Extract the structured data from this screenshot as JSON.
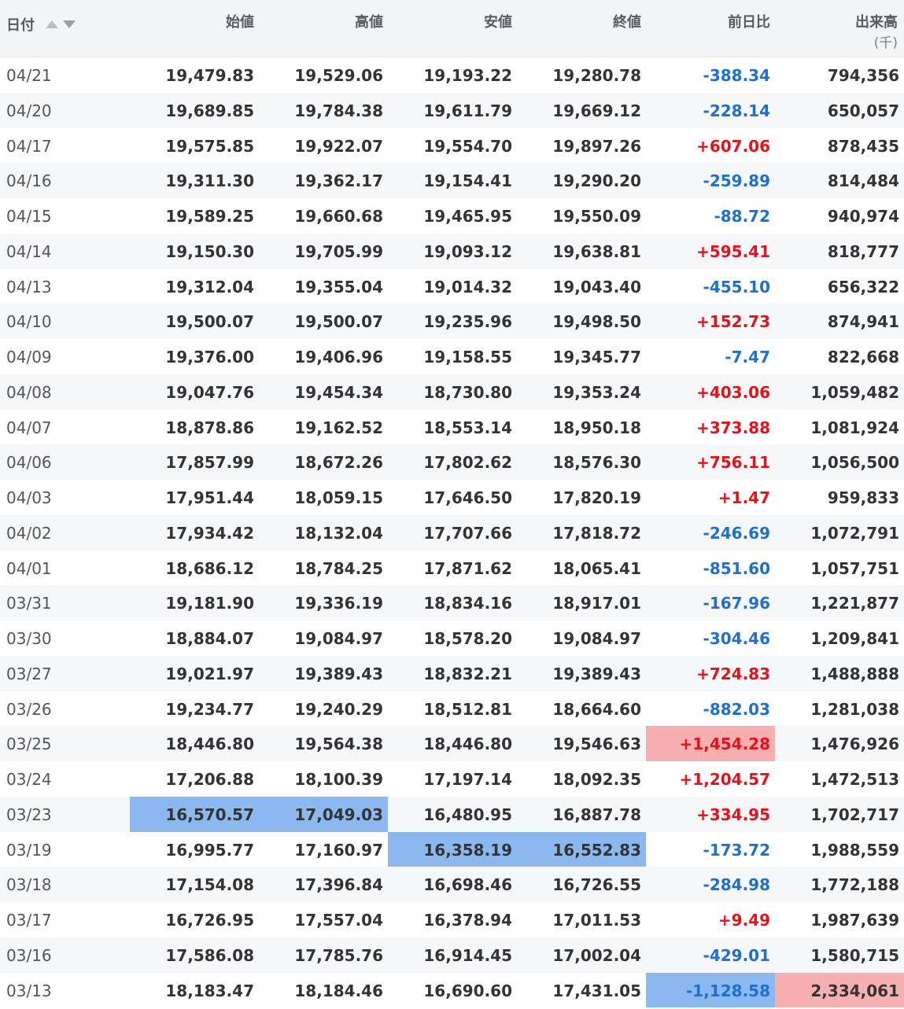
{
  "header": {
    "date": "日付",
    "open": "始値",
    "high": "高値",
    "low": "安値",
    "close": "終値",
    "change": "前日比",
    "volume": "出来高",
    "volume_unit": "(千)"
  },
  "rows": [
    {
      "date": "04/21",
      "open": "19,479.83",
      "high": "19,529.06",
      "low": "19,193.22",
      "close": "19,280.78",
      "change": "-388.34",
      "volume": "794,356"
    },
    {
      "date": "04/20",
      "open": "19,689.85",
      "high": "19,784.38",
      "low": "19,611.79",
      "close": "19,669.12",
      "change": "-228.14",
      "volume": "650,057"
    },
    {
      "date": "04/17",
      "open": "19,575.85",
      "high": "19,922.07",
      "low": "19,554.70",
      "close": "19,897.26",
      "change": "+607.06",
      "volume": "878,435"
    },
    {
      "date": "04/16",
      "open": "19,311.30",
      "high": "19,362.17",
      "low": "19,154.41",
      "close": "19,290.20",
      "change": "-259.89",
      "volume": "814,484"
    },
    {
      "date": "04/15",
      "open": "19,589.25",
      "high": "19,660.68",
      "low": "19,465.95",
      "close": "19,550.09",
      "change": "-88.72",
      "volume": "940,974"
    },
    {
      "date": "04/14",
      "open": "19,150.30",
      "high": "19,705.99",
      "low": "19,093.12",
      "close": "19,638.81",
      "change": "+595.41",
      "volume": "818,777"
    },
    {
      "date": "04/13",
      "open": "19,312.04",
      "high": "19,355.04",
      "low": "19,014.32",
      "close": "19,043.40",
      "change": "-455.10",
      "volume": "656,322"
    },
    {
      "date": "04/10",
      "open": "19,500.07",
      "high": "19,500.07",
      "low": "19,235.96",
      "close": "19,498.50",
      "change": "+152.73",
      "volume": "874,941"
    },
    {
      "date": "04/09",
      "open": "19,376.00",
      "high": "19,406.96",
      "low": "19,158.55",
      "close": "19,345.77",
      "change": "-7.47",
      "volume": "822,668"
    },
    {
      "date": "04/08",
      "open": "19,047.76",
      "high": "19,454.34",
      "low": "18,730.80",
      "close": "19,353.24",
      "change": "+403.06",
      "volume": "1,059,482"
    },
    {
      "date": "04/07",
      "open": "18,878.86",
      "high": "19,162.52",
      "low": "18,553.14",
      "close": "18,950.18",
      "change": "+373.88",
      "volume": "1,081,924"
    },
    {
      "date": "04/06",
      "open": "17,857.99",
      "high": "18,672.26",
      "low": "17,802.62",
      "close": "18,576.30",
      "change": "+756.11",
      "volume": "1,056,500"
    },
    {
      "date": "04/03",
      "open": "17,951.44",
      "high": "18,059.15",
      "low": "17,646.50",
      "close": "17,820.19",
      "change": "+1.47",
      "volume": "959,833"
    },
    {
      "date": "04/02",
      "open": "17,934.42",
      "high": "18,132.04",
      "low": "17,707.66",
      "close": "17,818.72",
      "change": "-246.69",
      "volume": "1,072,791"
    },
    {
      "date": "04/01",
      "open": "18,686.12",
      "high": "18,784.25",
      "low": "17,871.62",
      "close": "18,065.41",
      "change": "-851.60",
      "volume": "1,057,751"
    },
    {
      "date": "03/31",
      "open": "19,181.90",
      "high": "19,336.19",
      "low": "18,834.16",
      "close": "18,917.01",
      "change": "-167.96",
      "volume": "1,221,877"
    },
    {
      "date": "03/30",
      "open": "18,884.07",
      "high": "19,084.97",
      "low": "18,578.20",
      "close": "19,084.97",
      "change": "-304.46",
      "volume": "1,209,841"
    },
    {
      "date": "03/27",
      "open": "19,021.97",
      "high": "19,389.43",
      "low": "18,832.21",
      "close": "19,389.43",
      "change": "+724.83",
      "volume": "1,488,888"
    },
    {
      "date": "03/26",
      "open": "19,234.77",
      "high": "19,240.29",
      "low": "18,512.81",
      "close": "18,664.60",
      "change": "-882.03",
      "volume": "1,281,038"
    },
    {
      "date": "03/25",
      "open": "18,446.80",
      "high": "19,564.38",
      "low": "18,446.80",
      "close": "19,546.63",
      "change": "+1,454.28",
      "volume": "1,476,926"
    },
    {
      "date": "03/24",
      "open": "17,206.88",
      "high": "18,100.39",
      "low": "17,197.14",
      "close": "18,092.35",
      "change": "+1,204.57",
      "volume": "1,472,513"
    },
    {
      "date": "03/23",
      "open": "16,570.57",
      "high": "17,049.03",
      "low": "16,480.95",
      "close": "16,887.78",
      "change": "+334.95",
      "volume": "1,702,717"
    },
    {
      "date": "03/19",
      "open": "16,995.77",
      "high": "17,160.97",
      "low": "16,358.19",
      "close": "16,552.83",
      "change": "-173.72",
      "volume": "1,988,559"
    },
    {
      "date": "03/18",
      "open": "17,154.08",
      "high": "17,396.84",
      "low": "16,698.46",
      "close": "16,726.55",
      "change": "-284.98",
      "volume": "1,772,188"
    },
    {
      "date": "03/17",
      "open": "16,726.95",
      "high": "17,557.04",
      "low": "16,378.94",
      "close": "17,011.53",
      "change": "+9.49",
      "volume": "1,987,639"
    },
    {
      "date": "03/16",
      "open": "17,586.08",
      "high": "17,785.76",
      "low": "16,914.45",
      "close": "17,002.04",
      "change": "-429.01",
      "volume": "1,580,715"
    },
    {
      "date": "03/13",
      "open": "18,183.47",
      "high": "18,184.46",
      "low": "16,690.60",
      "close": "17,431.05",
      "change": "-1,128.58",
      "volume": "2,334,061"
    }
  ],
  "highlights": {
    "19": {
      "change": "red"
    },
    "21": {
      "open": "blue",
      "high": "blue"
    },
    "22": {
      "low": "blue",
      "close": "blue"
    },
    "26": {
      "change": "blue",
      "volume": "red"
    }
  },
  "colors": {
    "positive": "#e5111b",
    "negative": "#1f6fd1",
    "highlight_blue": "#8cb8f0",
    "highlight_red": "#f6b0b0"
  }
}
